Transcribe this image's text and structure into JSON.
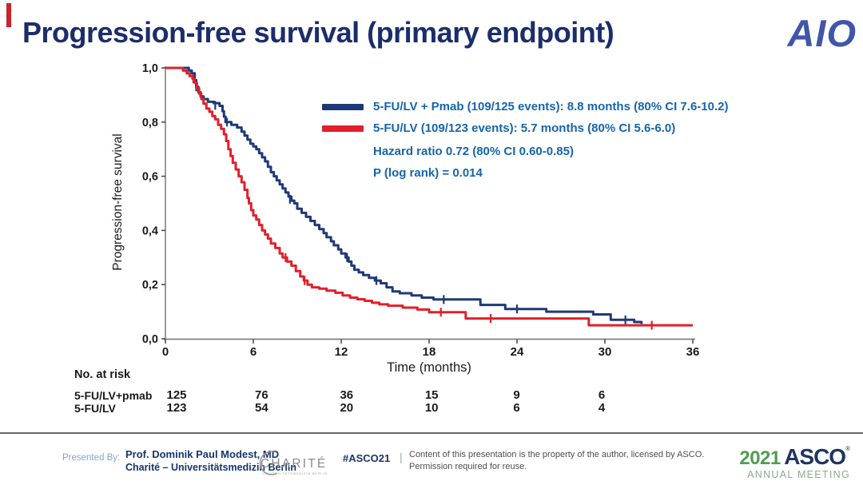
{
  "slide": {
    "title": "Progression-free survival (primary endpoint)",
    "aio_logo": "AIO"
  },
  "colors": {
    "title_navy": "#1b2d6b",
    "stat_text_blue": "#1565ad",
    "pmab_series_blue": "#1d3a78",
    "control_series_red": "#e0202a",
    "accent_mark_red": "#c8232c",
    "asco_green": "#4f9c51",
    "asco_navy": "#1e3460",
    "axis_gray": "#808080"
  },
  "chart_data": {
    "type": "line",
    "subtype": "kaplan-meier-step",
    "title": "",
    "xlabel": "Time (months)",
    "ylabel": "Progression-free survival",
    "xlim": [
      0,
      36
    ],
    "ylim": [
      0.0,
      1.0
    ],
    "grid": false,
    "legend_position": "top-right-inside",
    "x_ticks": [
      0,
      6,
      12,
      18,
      24,
      30,
      36
    ],
    "y_ticks": [
      {
        "value": 1.0,
        "label": "1,0"
      },
      {
        "value": 0.8,
        "label": "0,8"
      },
      {
        "value": 0.6,
        "label": "0,6"
      },
      {
        "value": 0.4,
        "label": "0,4"
      },
      {
        "value": 0.2,
        "label": "0,2"
      },
      {
        "value": 0.0,
        "label": "0,0"
      }
    ],
    "series": [
      {
        "name": "5-FU/LV + Pmab",
        "label": "5-FU/LV + Pmab (109/125 events): 8.8 months (80% CI 7.6-10.2)",
        "events": "109/125",
        "median_months": 8.8,
        "ci": "80% CI 7.6-10.2",
        "color": "#1d3a78",
        "points": [
          [
            0,
            1.0
          ],
          [
            1.6,
            0.99
          ],
          [
            1.8,
            0.98
          ],
          [
            2.0,
            0.955
          ],
          [
            2.1,
            0.93
          ],
          [
            2.25,
            0.91
          ],
          [
            2.4,
            0.895
          ],
          [
            2.6,
            0.885
          ],
          [
            2.9,
            0.875
          ],
          [
            3.3,
            0.87
          ],
          [
            3.7,
            0.86
          ],
          [
            3.9,
            0.84
          ],
          [
            4.0,
            0.82
          ],
          [
            4.1,
            0.8
          ],
          [
            4.5,
            0.79
          ],
          [
            4.9,
            0.78
          ],
          [
            5.2,
            0.765
          ],
          [
            5.4,
            0.75
          ],
          [
            5.6,
            0.735
          ],
          [
            5.8,
            0.72
          ],
          [
            6.0,
            0.71
          ],
          [
            6.2,
            0.7
          ],
          [
            6.4,
            0.685
          ],
          [
            6.6,
            0.67
          ],
          [
            6.8,
            0.655
          ],
          [
            7.0,
            0.635
          ],
          [
            7.2,
            0.615
          ],
          [
            7.4,
            0.6
          ],
          [
            7.6,
            0.585
          ],
          [
            7.8,
            0.57
          ],
          [
            8.0,
            0.555
          ],
          [
            8.2,
            0.54
          ],
          [
            8.4,
            0.525
          ],
          [
            8.6,
            0.51
          ],
          [
            8.8,
            0.5
          ],
          [
            9.0,
            0.48
          ],
          [
            9.3,
            0.465
          ],
          [
            9.6,
            0.45
          ],
          [
            9.9,
            0.435
          ],
          [
            10.2,
            0.42
          ],
          [
            10.5,
            0.405
          ],
          [
            10.8,
            0.39
          ],
          [
            11.0,
            0.375
          ],
          [
            11.3,
            0.36
          ],
          [
            11.5,
            0.345
          ],
          [
            11.8,
            0.33
          ],
          [
            12.0,
            0.315
          ],
          [
            12.3,
            0.3
          ],
          [
            12.5,
            0.285
          ],
          [
            12.7,
            0.27
          ],
          [
            12.9,
            0.255
          ],
          [
            13.2,
            0.245
          ],
          [
            13.5,
            0.235
          ],
          [
            13.9,
            0.225
          ],
          [
            14.3,
            0.215
          ],
          [
            14.7,
            0.205
          ],
          [
            15.1,
            0.19
          ],
          [
            15.5,
            0.175
          ],
          [
            16.0,
            0.168
          ],
          [
            16.8,
            0.16
          ],
          [
            17.5,
            0.152
          ],
          [
            18.3,
            0.145
          ],
          [
            21.5,
            0.125
          ],
          [
            23.2,
            0.11
          ],
          [
            26.0,
            0.1
          ],
          [
            29.2,
            0.09
          ],
          [
            30.4,
            0.07
          ],
          [
            32.0,
            0.062
          ],
          [
            32.5,
            0.055
          ]
        ],
        "censor_marks": [
          [
            2.1,
            0.93
          ],
          [
            3.4,
            0.862
          ],
          [
            4.2,
            0.8
          ],
          [
            8.5,
            0.515
          ],
          [
            12.4,
            0.3
          ],
          [
            14.4,
            0.215
          ],
          [
            19.0,
            0.145
          ],
          [
            24.0,
            0.11
          ],
          [
            31.4,
            0.07
          ]
        ]
      },
      {
        "name": "5-FU/LV",
        "label": "5-FU/LV (109/123 events): 5.7 months (80% CI 5.6-6.0)",
        "events": "109/123",
        "median_months": 5.7,
        "ci": "80% CI 5.6-6.0",
        "color": "#e0202a",
        "points": [
          [
            0,
            1.0
          ],
          [
            1.2,
            0.99
          ],
          [
            1.45,
            0.98
          ],
          [
            1.65,
            0.97
          ],
          [
            1.85,
            0.96
          ],
          [
            2.0,
            0.945
          ],
          [
            2.15,
            0.925
          ],
          [
            2.3,
            0.905
          ],
          [
            2.45,
            0.885
          ],
          [
            2.6,
            0.868
          ],
          [
            2.8,
            0.85
          ],
          [
            3.0,
            0.838
          ],
          [
            3.2,
            0.822
          ],
          [
            3.4,
            0.81
          ],
          [
            3.6,
            0.79
          ],
          [
            3.8,
            0.775
          ],
          [
            4.0,
            0.755
          ],
          [
            4.15,
            0.73
          ],
          [
            4.3,
            0.7
          ],
          [
            4.45,
            0.675
          ],
          [
            4.6,
            0.65
          ],
          [
            4.8,
            0.625
          ],
          [
            5.0,
            0.6
          ],
          [
            5.2,
            0.578
          ],
          [
            5.4,
            0.55
          ],
          [
            5.6,
            0.52
          ],
          [
            5.7,
            0.5
          ],
          [
            5.85,
            0.475
          ],
          [
            6.0,
            0.455
          ],
          [
            6.2,
            0.44
          ],
          [
            6.4,
            0.42
          ],
          [
            6.6,
            0.4
          ],
          [
            6.8,
            0.385
          ],
          [
            7.0,
            0.37
          ],
          [
            7.2,
            0.352
          ],
          [
            7.5,
            0.335
          ],
          [
            7.8,
            0.315
          ],
          [
            8.0,
            0.3
          ],
          [
            8.3,
            0.285
          ],
          [
            8.6,
            0.27
          ],
          [
            8.9,
            0.25
          ],
          [
            9.2,
            0.23
          ],
          [
            9.45,
            0.215
          ],
          [
            9.7,
            0.2
          ],
          [
            10.0,
            0.19
          ],
          [
            10.5,
            0.185
          ],
          [
            11.0,
            0.178
          ],
          [
            11.6,
            0.17
          ],
          [
            12.1,
            0.16
          ],
          [
            12.6,
            0.152
          ],
          [
            13.1,
            0.146
          ],
          [
            13.6,
            0.14
          ],
          [
            14.1,
            0.133
          ],
          [
            14.6,
            0.127
          ],
          [
            15.2,
            0.122
          ],
          [
            16.2,
            0.115
          ],
          [
            17.2,
            0.108
          ],
          [
            18.0,
            0.098
          ],
          [
            20.5,
            0.075
          ],
          [
            28.9,
            0.05
          ],
          [
            36,
            0.05
          ]
        ],
        "censor_marks": [
          [
            1.9,
            0.96
          ],
          [
            8.2,
            0.3
          ],
          [
            9.5,
            0.215
          ],
          [
            18.8,
            0.098
          ],
          [
            22.2,
            0.075
          ],
          [
            33.2,
            0.05
          ]
        ]
      }
    ],
    "annotations": [
      "Hazard ratio 0.72 (80% CI 0.60-0.85)",
      "P (log rank) = 0.014"
    ]
  },
  "risk_table": {
    "title": "No. at risk",
    "times": [
      0,
      6,
      12,
      18,
      24,
      30
    ],
    "rows": [
      {
        "label": "5-FU/LV+pmab",
        "values": [
          125,
          76,
          36,
          15,
          9,
          6
        ]
      },
      {
        "label": "5-FU/LV",
        "values": [
          123,
          54,
          20,
          10,
          6,
          4
        ]
      }
    ]
  },
  "footer": {
    "presented_by_label": "Presented By:",
    "presenter_name": "Prof. Dominik Paul Modest, MD",
    "presenter_affiliation": "Charité – Universitätsmedizin Berlin",
    "charite_logo_text": "CHARITÉ",
    "charite_logo_subtext": "UNIVERSITÄTSMEDIZIN BERLIN",
    "hashtag": "#ASCO21",
    "pipe": "|",
    "disclaimer_line1": "Content of this presentation is the property of the author, licensed by ASCO.",
    "disclaimer_line2": "Permission required for reuse.",
    "asco_year": "2021",
    "asco_name": "ASCO",
    "asco_reg": "®",
    "asco_sub": "ANNUAL MEETING"
  }
}
